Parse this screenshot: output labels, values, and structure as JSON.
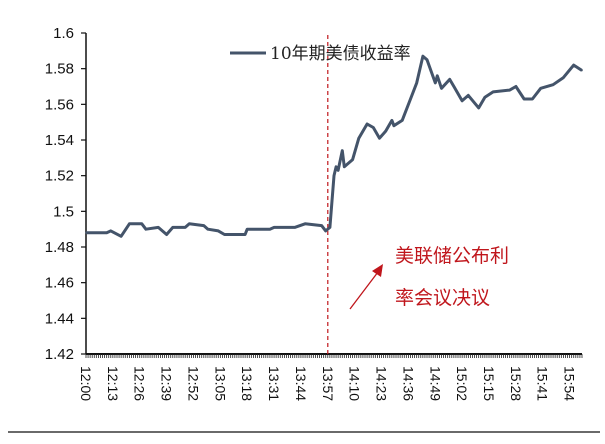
{
  "chart_data": {
    "type": "line",
    "title": "",
    "xlabel": "",
    "ylabel": "",
    "ylim": [
      1.42,
      1.6
    ],
    "yticks": [
      "1.42",
      "1.44",
      "1.46",
      "1.48",
      "1.5",
      "1.52",
      "1.54",
      "1.56",
      "1.58",
      "1.6"
    ],
    "xticks": [
      "12:00",
      "12:13",
      "12:26",
      "12:39",
      "12:52",
      "13:05",
      "13:18",
      "13:31",
      "13:44",
      "13:57",
      "14:10",
      "14:23",
      "14:36",
      "14:49",
      "15:02",
      "15:15",
      "15:28",
      "15:41",
      "15:54"
    ],
    "xlim": [
      "12:00",
      "16:00"
    ],
    "grid": false,
    "legend_position": "top-center",
    "series": [
      {
        "name": "10年期美债收益率",
        "color": "#44546a",
        "x": [
          "12:00",
          "12:05",
          "12:10",
          "12:12",
          "12:17",
          "12:21",
          "12:27",
          "12:29",
          "12:35",
          "12:39",
          "12:42",
          "12:48",
          "12:50",
          "12:57",
          "12:59",
          "13:04",
          "13:07",
          "13:17",
          "13:18",
          "13:29",
          "13:31",
          "13:41",
          "13:46",
          "13:54",
          "13:56",
          "13:58",
          "14:00",
          "14:01",
          "14:02",
          "14:04",
          "14:05",
          "14:09",
          "14:12",
          "14:16",
          "14:19",
          "14:22",
          "14:25",
          "14:28",
          "14:29",
          "14:33",
          "14:37",
          "14:40",
          "14:43",
          "14:45",
          "14:49",
          "14:50",
          "14:52",
          "14:56",
          "14:58",
          "15:02",
          "15:05",
          "15:10",
          "15:13",
          "15:17",
          "15:25",
          "15:28",
          "15:32",
          "15:36",
          "15:40",
          "15:46",
          "15:51",
          "15:56",
          "16:00"
        ],
        "y": [
          1.488,
          1.488,
          1.488,
          1.489,
          1.486,
          1.493,
          1.493,
          1.49,
          1.491,
          1.487,
          1.491,
          1.491,
          1.493,
          1.492,
          1.49,
          1.489,
          1.487,
          1.487,
          1.49,
          1.49,
          1.491,
          1.491,
          1.493,
          1.492,
          1.489,
          1.491,
          1.52,
          1.525,
          1.523,
          1.534,
          1.525,
          1.529,
          1.541,
          1.549,
          1.547,
          1.541,
          1.545,
          1.551,
          1.548,
          1.551,
          1.563,
          1.572,
          1.587,
          1.585,
          1.572,
          1.576,
          1.569,
          1.574,
          1.57,
          1.562,
          1.565,
          1.558,
          1.564,
          1.567,
          1.568,
          1.57,
          1.563,
          1.563,
          1.569,
          1.571,
          1.575,
          1.582,
          1.579
        ]
      }
    ],
    "annotations": {
      "event_line_at": "13:57",
      "event_line_color": "#c0161c",
      "label_line1": "美联储公布利",
      "label_line2": "率会议决议"
    }
  }
}
